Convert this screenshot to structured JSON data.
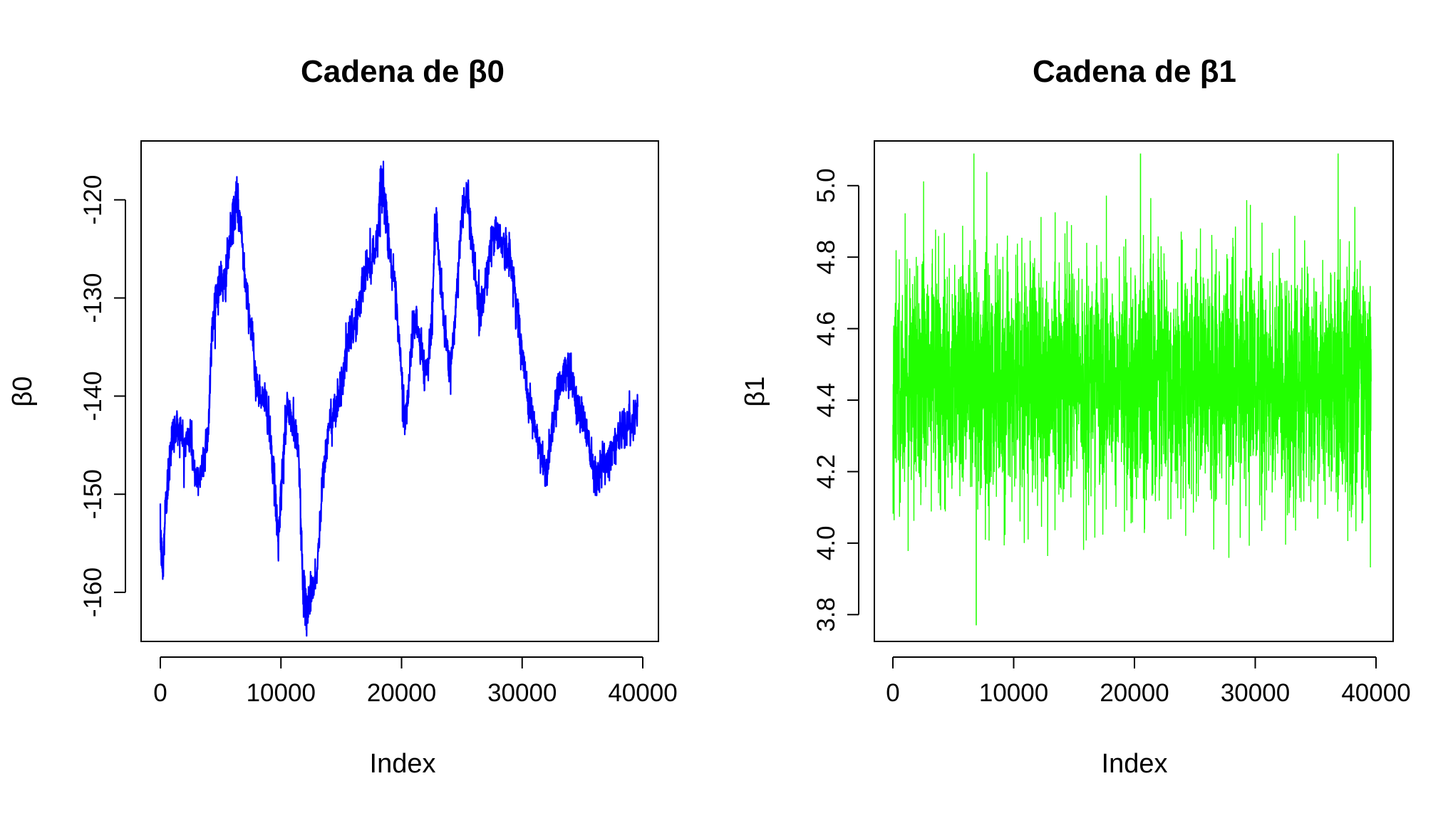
{
  "chart_data": [
    {
      "type": "line",
      "title": "Cadena de β0",
      "xlabel": "Index",
      "ylabel": "β0",
      "xlim": [
        0,
        40000
      ],
      "ylim": [
        -165,
        -114
      ],
      "x_ticks": [
        "0",
        "10000",
        "20000",
        "30000",
        "40000"
      ],
      "y_ticks": [
        "-160",
        "-150",
        "-140",
        "-130",
        "-120"
      ],
      "grid": false,
      "legend": "none",
      "color": "#0000ff",
      "series": [
        {
          "x": [
            0,
            200,
            400,
            600,
            800,
            1000,
            1500,
            2000,
            2500,
            3000,
            3500,
            4000,
            4300,
            4600,
            5000,
            5300,
            5600,
            6000,
            6300,
            6600,
            7000,
            7500,
            8000,
            8500,
            9000,
            9500,
            9800,
            10100,
            10500,
            11000,
            11500,
            11800,
            12100,
            12500,
            13000,
            13500,
            14000,
            14500,
            15000,
            15500,
            16000,
            16500,
            17000,
            17500,
            18000,
            18300,
            18600,
            19000,
            19500,
            20000,
            20300,
            20600,
            21000,
            21500,
            22000,
            22500,
            22800,
            23200,
            23600,
            24000,
            24500,
            25000,
            25500,
            26000,
            26500,
            27000,
            27500,
            28000,
            28500,
            29000,
            29500,
            30000,
            30500,
            31000,
            31500,
            32000,
            32500,
            33000,
            33500,
            34000,
            34500,
            35000,
            35500,
            36000,
            36500,
            37000,
            37500,
            38000,
            38500,
            39000,
            39600
          ],
          "values": [
            -154,
            -158,
            -152,
            -149,
            -146,
            -144,
            -143,
            -145,
            -144,
            -149,
            -147,
            -143,
            -133,
            -130,
            -128,
            -129,
            -126,
            -122,
            -120,
            -122,
            -127,
            -133,
            -139,
            -140,
            -142,
            -150,
            -155,
            -148,
            -141,
            -143,
            -146,
            -159,
            -162,
            -160,
            -158,
            -148,
            -143,
            -141,
            -139,
            -135,
            -133,
            -131,
            -127,
            -126,
            -124,
            -118,
            -120,
            -125,
            -130,
            -138,
            -143,
            -139,
            -132,
            -134,
            -138,
            -133,
            -122,
            -128,
            -133,
            -138,
            -131,
            -121,
            -120,
            -126,
            -132,
            -128,
            -124,
            -123,
            -125,
            -126,
            -130,
            -136,
            -140,
            -143,
            -146,
            -148,
            -143,
            -139,
            -138,
            -137,
            -141,
            -142,
            -144,
            -148,
            -147,
            -147,
            -145,
            -144,
            -143,
            -143,
            -141
          ]
        }
      ]
    },
    {
      "type": "line",
      "title": "Cadena de β1",
      "xlabel": "Index",
      "ylabel": "β1",
      "xlim": [
        0,
        40000
      ],
      "ylim": [
        3.725,
        5.125
      ],
      "x_ticks": [
        "0",
        "10000",
        "20000",
        "30000",
        "40000"
      ],
      "y_ticks": [
        "3.8",
        "4.0",
        "4.2",
        "4.4",
        "4.6",
        "4.8",
        "5.0"
      ],
      "grid": false,
      "legend": "none",
      "color": "#22ff00",
      "series": [
        {
          "x_range": [
            0,
            39600
          ],
          "mean": 4.46,
          "sd": 0.17,
          "min": 3.77,
          "max": 5.09
        }
      ]
    }
  ]
}
